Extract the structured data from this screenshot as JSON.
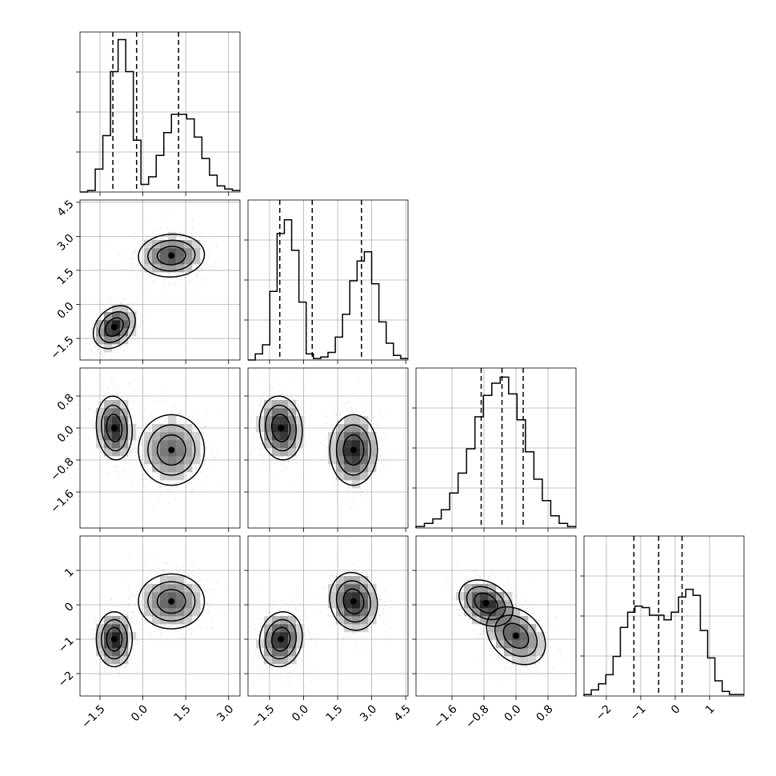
{
  "chart_data": {
    "type": "corner",
    "grid": true,
    "parameters": [
      {
        "range": [
          -2.2,
          3.4
        ],
        "xticks": [
          -1.5,
          0.0,
          1.5,
          3.0
        ],
        "xticklabels": [
          "−1.5",
          "0.0",
          "1.5",
          "3.0"
        ],
        "yticks": [],
        "yticklabels": [],
        "quantiles": [
          -1.05,
          -0.22,
          1.25
        ]
      },
      {
        "range": [
          -2.45,
          4.6
        ],
        "xticks": [
          -1.5,
          0.0,
          1.5,
          3.0,
          4.5
        ],
        "xticklabels": [
          "−1.5",
          "0.0",
          "1.5",
          "3.0",
          "4.5"
        ],
        "yticks": [
          -1.5,
          0.0,
          1.5,
          3.0,
          4.5
        ],
        "yticklabels": [
          "−1.5",
          "0.0",
          "1.5",
          "3.0",
          "4.5"
        ],
        "quantiles": [
          -1.05,
          0.38,
          2.55
        ]
      },
      {
        "range": [
          -2.5,
          1.5
        ],
        "xticks": [
          -1.6,
          -0.8,
          0.0,
          0.8
        ],
        "xticklabels": [
          "−1.6",
          "−0.8",
          "0.0",
          "0.8"
        ],
        "yticks": [
          -1.6,
          -0.8,
          0.0,
          0.8
        ],
        "yticklabels": [
          "−1.6",
          "−0.8",
          "0.0",
          "0.8"
        ],
        "quantiles": [
          -0.87,
          -0.35,
          0.18
        ]
      },
      {
        "range": [
          -2.65,
          2.0
        ],
        "xticks": [
          -2,
          -1,
          0,
          1
        ],
        "xticklabels": [
          "−2",
          "−1",
          "0",
          "1"
        ],
        "yticks": [
          -2,
          -1,
          0,
          1
        ],
        "yticklabels": [
          "−2",
          "−1",
          "0",
          "1"
        ],
        "quantiles": [
          -1.2,
          -0.48,
          0.2
        ]
      }
    ],
    "histograms": [
      {
        "param": 0,
        "counts": [
          0.0,
          0.01,
          0.15,
          0.37,
          0.79,
          1.0,
          0.79,
          0.34,
          0.05,
          0.1,
          0.24,
          0.39,
          0.51,
          0.51,
          0.48,
          0.36,
          0.22,
          0.11,
          0.04,
          0.02,
          0.01
        ]
      },
      {
        "param": 1,
        "counts": [
          0.0,
          0.04,
          0.1,
          0.45,
          0.83,
          0.92,
          0.72,
          0.38,
          0.04,
          0.01,
          0.02,
          0.05,
          0.15,
          0.3,
          0.52,
          0.65,
          0.71,
          0.5,
          0.25,
          0.11,
          0.03,
          0.01
        ]
      },
      {
        "param": 2,
        "counts": [
          0.01,
          0.03,
          0.06,
          0.12,
          0.23,
          0.36,
          0.52,
          0.73,
          0.87,
          0.95,
          0.99,
          0.88,
          0.71,
          0.5,
          0.32,
          0.18,
          0.08,
          0.03,
          0.01
        ]
      },
      {
        "param": 3,
        "counts": [
          0.01,
          0.04,
          0.08,
          0.14,
          0.26,
          0.45,
          0.55,
          0.59,
          0.58,
          0.53,
          0.53,
          0.5,
          0.55,
          0.65,
          0.7,
          0.66,
          0.43,
          0.25,
          0.1,
          0.03,
          0.01,
          0.01
        ]
      }
    ],
    "joint_distributions": [
      {
        "x_param": 0,
        "y_param": 1,
        "modes": [
          {
            "mean": [
              -1.0,
              -1.0
            ],
            "sd": [
              0.35,
              0.45
            ],
            "rho": 0.3,
            "weight": 0.45
          },
          {
            "mean": [
              1.0,
              2.15
            ],
            "sd": [
              0.55,
              0.45
            ],
            "rho": 0.05,
            "weight": 0.55
          }
        ]
      },
      {
        "x_param": 0,
        "y_param": 2,
        "modes": [
          {
            "mean": [
              -1.0,
              0.0
            ],
            "sd": [
              0.3,
              0.38
            ],
            "rho": -0.1,
            "weight": 0.45
          },
          {
            "mean": [
              1.0,
              -0.55
            ],
            "sd": [
              0.55,
              0.42
            ],
            "rho": 0.0,
            "weight": 0.55
          }
        ]
      },
      {
        "x_param": 1,
        "y_param": 2,
        "modes": [
          {
            "mean": [
              -1.0,
              0.0
            ],
            "sd": [
              0.45,
              0.38
            ],
            "rho": -0.1,
            "weight": 0.45
          },
          {
            "mean": [
              2.2,
              -0.55
            ],
            "sd": [
              0.5,
              0.42
            ],
            "rho": 0.0,
            "weight": 0.55
          }
        ]
      },
      {
        "x_param": 0,
        "y_param": 3,
        "modes": [
          {
            "mean": [
              -1.0,
              -1.0
            ],
            "sd": [
              0.3,
              0.38
            ],
            "rho": 0.0,
            "weight": 0.45
          },
          {
            "mean": [
              1.0,
              0.1
            ],
            "sd": [
              0.55,
              0.38
            ],
            "rho": 0.0,
            "weight": 0.55
          }
        ]
      },
      {
        "x_param": 1,
        "y_param": 3,
        "modes": [
          {
            "mean": [
              -1.0,
              -1.0
            ],
            "sd": [
              0.45,
              0.38
            ],
            "rho": 0.1,
            "weight": 0.45
          },
          {
            "mean": [
              2.2,
              0.1
            ],
            "sd": [
              0.5,
              0.4
            ],
            "rho": -0.1,
            "weight": 0.55
          }
        ]
      },
      {
        "x_param": 2,
        "y_param": 3,
        "modes": [
          {
            "mean": [
              -0.75,
              0.05
            ],
            "sd": [
              0.32,
              0.32
            ],
            "rho": -0.3,
            "weight": 0.5
          },
          {
            "mean": [
              0.0,
              -0.9
            ],
            "sd": [
              0.35,
              0.4
            ],
            "rho": -0.3,
            "weight": 0.5
          }
        ]
      }
    ]
  }
}
